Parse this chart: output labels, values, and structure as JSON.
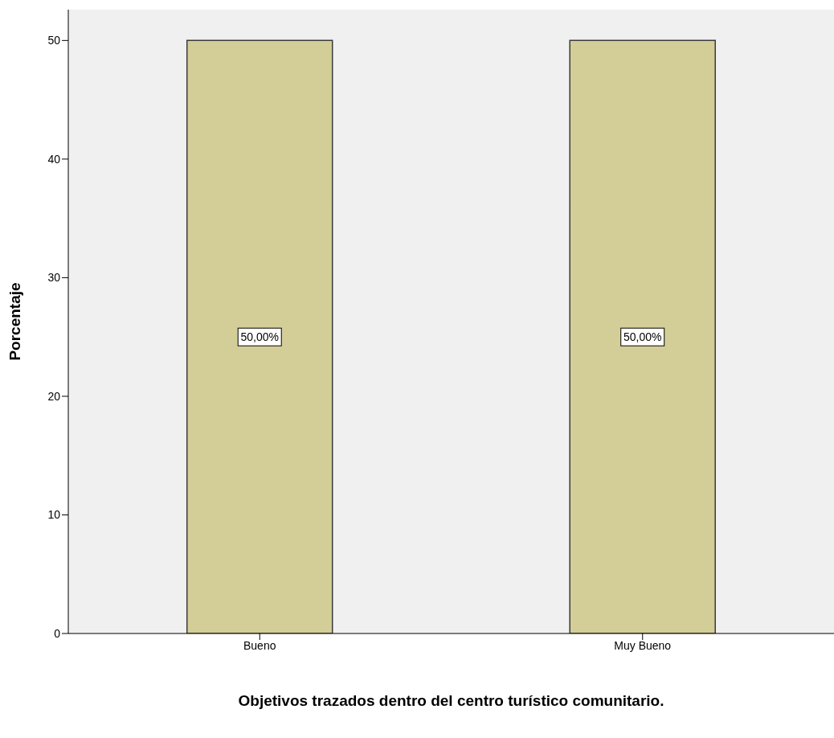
{
  "chart_data": {
    "type": "bar",
    "xlabel": "Objetivos trazados dentro del centro turístico comunitario.",
    "ylabel": "Porcentaje",
    "categories": [
      "Bueno",
      "Muy Bueno"
    ],
    "values": [
      50,
      50
    ],
    "color": "#d3ce97",
    "value_labels": [
      "50,00%",
      "50,00%"
    ],
    "ylim": [
      0,
      52.6
    ],
    "yticks": [
      0,
      10,
      20,
      30,
      40,
      50
    ],
    "grid": false
  }
}
